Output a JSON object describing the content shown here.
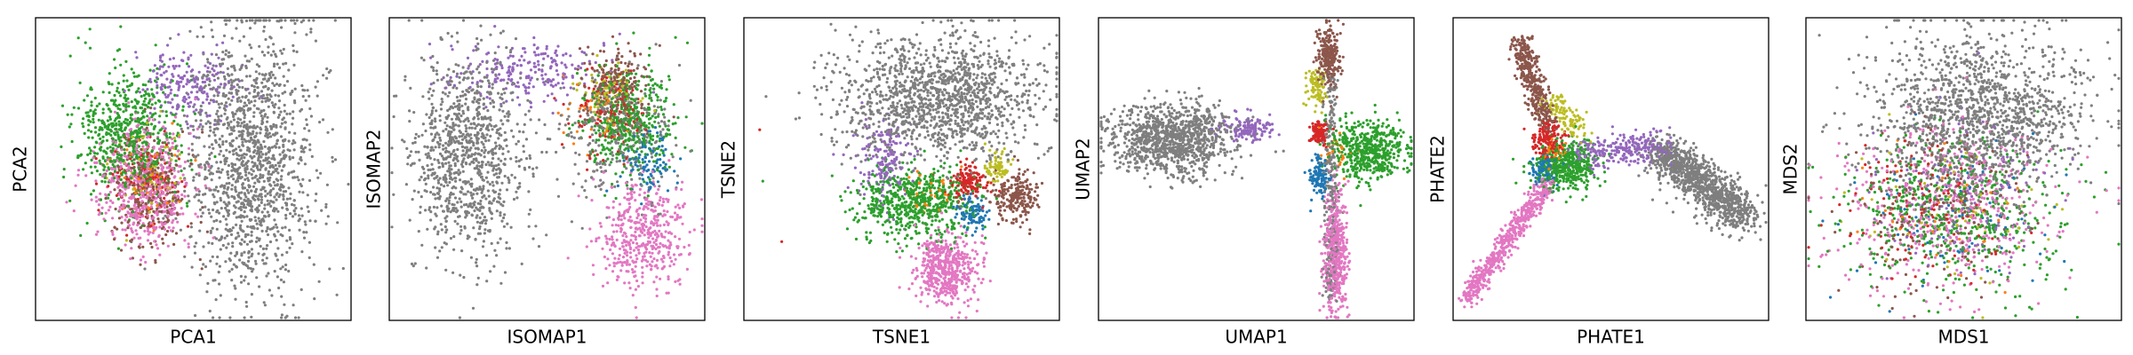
{
  "figure": {
    "panel_count": 6,
    "colors": {
      "gray": "#7f7f7f",
      "purple": "#9467bd",
      "green": "#2ca02c",
      "pink": "#e377c2",
      "brown": "#8c564b",
      "olive": "#bcbd22",
      "red": "#d62728",
      "blue": "#1f77b4",
      "orange": "#ff7f0e",
      "frame": "#000000",
      "background": "#ffffff"
    }
  },
  "chart_data": [
    {
      "type": "scatter",
      "title": "",
      "xlabel": "PCA1",
      "ylabel": "PCA2",
      "xticks": [],
      "yticks": [],
      "grid": false,
      "legend": "none",
      "xlim": [
        0,
        1
      ],
      "ylim": [
        0,
        1
      ],
      "clusters": [
        {
          "color": "gray",
          "cx": 0.68,
          "cy": 0.53,
          "sx": 0.1,
          "sy": 0.22,
          "n": 1400
        },
        {
          "color": "purple",
          "cx": 0.48,
          "cy": 0.78,
          "sx": 0.08,
          "sy": 0.06,
          "n": 200
        },
        {
          "color": "green",
          "cx": 0.29,
          "cy": 0.6,
          "sx": 0.08,
          "sy": 0.11,
          "n": 650
        },
        {
          "color": "pink",
          "cx": 0.34,
          "cy": 0.45,
          "sx": 0.07,
          "sy": 0.1,
          "n": 550
        },
        {
          "color": "brown",
          "cx": 0.36,
          "cy": 0.42,
          "sx": 0.06,
          "sy": 0.09,
          "n": 280
        },
        {
          "color": "red",
          "cx": 0.34,
          "cy": 0.48,
          "sx": 0.06,
          "sy": 0.08,
          "n": 120
        },
        {
          "color": "orange",
          "cx": 0.36,
          "cy": 0.44,
          "sx": 0.05,
          "sy": 0.07,
          "n": 60
        },
        {
          "color": "olive",
          "cx": 0.36,
          "cy": 0.5,
          "sx": 0.06,
          "sy": 0.08,
          "n": 60
        }
      ]
    },
    {
      "type": "scatter",
      "title": "",
      "xlabel": "ISOMAP1",
      "ylabel": "ISOMAP2",
      "xticks": [],
      "yticks": [],
      "grid": false,
      "legend": "none",
      "xlim": [
        0,
        1
      ],
      "ylim": [
        0,
        1
      ],
      "clusters": [
        {
          "color": "gray",
          "cx": 0.25,
          "cy": 0.55,
          "sx": 0.09,
          "sy": 0.17,
          "n": 1000
        },
        {
          "color": "gray",
          "cx": 0.72,
          "cy": 0.62,
          "sx": 0.09,
          "sy": 0.11,
          "n": 300
        },
        {
          "color": "purple",
          "cx": 0.45,
          "cy": 0.82,
          "sx": 0.12,
          "sy": 0.05,
          "n": 220
        },
        {
          "color": "pink",
          "cx": 0.8,
          "cy": 0.28,
          "sx": 0.07,
          "sy": 0.09,
          "n": 450
        },
        {
          "color": "green",
          "cx": 0.76,
          "cy": 0.66,
          "sx": 0.07,
          "sy": 0.09,
          "n": 450
        },
        {
          "color": "brown",
          "cx": 0.72,
          "cy": 0.77,
          "sx": 0.05,
          "sy": 0.06,
          "n": 200
        },
        {
          "color": "red",
          "cx": 0.7,
          "cy": 0.68,
          "sx": 0.06,
          "sy": 0.07,
          "n": 120
        },
        {
          "color": "blue",
          "cx": 0.82,
          "cy": 0.52,
          "sx": 0.04,
          "sy": 0.05,
          "n": 100
        },
        {
          "color": "olive",
          "cx": 0.7,
          "cy": 0.75,
          "sx": 0.05,
          "sy": 0.05,
          "n": 70
        },
        {
          "color": "orange",
          "cx": 0.66,
          "cy": 0.7,
          "sx": 0.05,
          "sy": 0.06,
          "n": 40
        }
      ]
    },
    {
      "type": "scatter",
      "title": "",
      "xlabel": "TSNE1",
      "ylabel": "TSNE2",
      "xticks": [],
      "yticks": [],
      "grid": false,
      "legend": "none",
      "xlim": [
        0,
        1
      ],
      "ylim": [
        0,
        1
      ],
      "clusters": [
        {
          "color": "gray",
          "cx": 0.62,
          "cy": 0.74,
          "sx": 0.16,
          "sy": 0.1,
          "n": 1400
        },
        {
          "color": "purple",
          "cx": 0.44,
          "cy": 0.52,
          "sx": 0.04,
          "sy": 0.07,
          "n": 180
        },
        {
          "color": "green",
          "cx": 0.55,
          "cy": 0.39,
          "sx": 0.09,
          "sy": 0.06,
          "n": 650
        },
        {
          "color": "red",
          "cx": 0.71,
          "cy": 0.45,
          "sx": 0.03,
          "sy": 0.03,
          "n": 150
        },
        {
          "color": "blue",
          "cx": 0.72,
          "cy": 0.35,
          "sx": 0.025,
          "sy": 0.03,
          "n": 100
        },
        {
          "color": "olive",
          "cx": 0.8,
          "cy": 0.51,
          "sx": 0.02,
          "sy": 0.03,
          "n": 70
        },
        {
          "color": "brown",
          "cx": 0.86,
          "cy": 0.41,
          "sx": 0.035,
          "sy": 0.04,
          "n": 220
        },
        {
          "color": "pink",
          "cx": 0.64,
          "cy": 0.17,
          "sx": 0.05,
          "sy": 0.06,
          "n": 500
        },
        {
          "color": "orange",
          "cx": 0.6,
          "cy": 0.42,
          "sx": 0.05,
          "sy": 0.04,
          "n": 40
        }
      ],
      "outliers": [
        {
          "color": "gray",
          "x": 0.07,
          "y": 0.74
        },
        {
          "color": "red",
          "x": 0.05,
          "y": 0.63
        },
        {
          "color": "green",
          "x": 0.06,
          "y": 0.46
        },
        {
          "color": "red",
          "x": 0.12,
          "y": 0.26
        }
      ]
    },
    {
      "type": "scatter",
      "title": "",
      "xlabel": "UMAP1",
      "ylabel": "UMAP2",
      "xticks": [],
      "yticks": [],
      "grid": false,
      "legend": "none",
      "xlim": [
        0,
        1
      ],
      "ylim": [
        0,
        1
      ],
      "clusters": [
        {
          "color": "gray",
          "cx": 0.24,
          "cy": 0.6,
          "sx": 0.1,
          "sy": 0.06,
          "n": 1100
        },
        {
          "color": "purple",
          "cx": 0.48,
          "cy": 0.63,
          "sx": 0.04,
          "sy": 0.02,
          "n": 130
        },
        {
          "color": "brown",
          "cx": 0.73,
          "cy": 0.87,
          "sx": 0.02,
          "sy": 0.06,
          "n": 250
        },
        {
          "color": "olive",
          "cx": 0.69,
          "cy": 0.78,
          "sx": 0.015,
          "sy": 0.04,
          "n": 90
        },
        {
          "color": "red",
          "cx": 0.7,
          "cy": 0.62,
          "sx": 0.015,
          "sy": 0.02,
          "n": 120
        },
        {
          "color": "green",
          "cx": 0.86,
          "cy": 0.56,
          "sx": 0.06,
          "sy": 0.05,
          "n": 550
        },
        {
          "color": "blue",
          "cx": 0.7,
          "cy": 0.47,
          "sx": 0.015,
          "sy": 0.03,
          "n": 120
        },
        {
          "color": "pink",
          "cx": 0.75,
          "cy": 0.22,
          "sx": 0.018,
          "sy": 0.1,
          "n": 500
        },
        {
          "color": "orange",
          "cx": 0.74,
          "cy": 0.55,
          "sx": 0.03,
          "sy": 0.03,
          "n": 30
        }
      ],
      "segments": [
        {
          "color": "gray",
          "x0": 0.735,
          "y0": 0.82,
          "x1": 0.735,
          "y1": 0.08,
          "n": 260,
          "spread": 0.012
        }
      ]
    },
    {
      "type": "scatter",
      "title": "",
      "xlabel": "PHATE1",
      "ylabel": "PHATE2",
      "xticks": [],
      "yticks": [],
      "grid": false,
      "legend": "none",
      "xlim": [
        0,
        1
      ],
      "ylim": [
        0,
        1
      ],
      "segments": [
        {
          "color": "brown",
          "x0": 0.21,
          "y0": 0.93,
          "x1": 0.3,
          "y1": 0.64,
          "n": 380,
          "spread": 0.018
        },
        {
          "color": "olive",
          "x0": 0.32,
          "y0": 0.72,
          "x1": 0.4,
          "y1": 0.62,
          "n": 110,
          "spread": 0.02
        },
        {
          "color": "pink",
          "x0": 0.04,
          "y0": 0.07,
          "x1": 0.3,
          "y1": 0.45,
          "n": 560,
          "spread": 0.015
        },
        {
          "color": "purple",
          "x0": 0.38,
          "y0": 0.55,
          "x1": 0.68,
          "y1": 0.58,
          "n": 280,
          "spread": 0.025
        },
        {
          "color": "gray",
          "x0": 0.66,
          "y0": 0.56,
          "x1": 0.92,
          "y1": 0.34,
          "n": 1100,
          "spread": 0.035
        }
      ],
      "clusters": [
        {
          "color": "red",
          "cx": 0.3,
          "cy": 0.6,
          "sx": 0.025,
          "sy": 0.03,
          "n": 140
        },
        {
          "color": "green",
          "cx": 0.36,
          "cy": 0.51,
          "sx": 0.05,
          "sy": 0.04,
          "n": 450
        },
        {
          "color": "blue",
          "cx": 0.29,
          "cy": 0.5,
          "sx": 0.02,
          "sy": 0.025,
          "n": 110
        },
        {
          "color": "orange",
          "cx": 0.32,
          "cy": 0.55,
          "sx": 0.02,
          "sy": 0.02,
          "n": 30
        }
      ]
    },
    {
      "type": "scatter",
      "title": "",
      "xlabel": "MDS1",
      "ylabel": "MDS2",
      "xticks": [],
      "yticks": [],
      "grid": false,
      "legend": "none",
      "xlim": [
        0,
        1
      ],
      "ylim": [
        0,
        1
      ],
      "clusters": [
        {
          "color": "gray",
          "cx": 0.55,
          "cy": 0.68,
          "sx": 0.17,
          "sy": 0.13,
          "n": 1400
        },
        {
          "color": "pink",
          "cx": 0.45,
          "cy": 0.37,
          "sx": 0.18,
          "sy": 0.14,
          "n": 450
        },
        {
          "color": "green",
          "cx": 0.48,
          "cy": 0.35,
          "sx": 0.17,
          "sy": 0.13,
          "n": 550
        },
        {
          "color": "brown",
          "cx": 0.4,
          "cy": 0.36,
          "sx": 0.15,
          "sy": 0.13,
          "n": 220
        },
        {
          "color": "red",
          "cx": 0.38,
          "cy": 0.38,
          "sx": 0.14,
          "sy": 0.12,
          "n": 120
        },
        {
          "color": "purple",
          "cx": 0.5,
          "cy": 0.4,
          "sx": 0.16,
          "sy": 0.13,
          "n": 150
        },
        {
          "color": "blue",
          "cx": 0.45,
          "cy": 0.35,
          "sx": 0.15,
          "sy": 0.12,
          "n": 100
        },
        {
          "color": "olive",
          "cx": 0.45,
          "cy": 0.38,
          "sx": 0.15,
          "sy": 0.12,
          "n": 60
        },
        {
          "color": "orange",
          "cx": 0.42,
          "cy": 0.36,
          "sx": 0.14,
          "sy": 0.12,
          "n": 40
        }
      ]
    }
  ]
}
